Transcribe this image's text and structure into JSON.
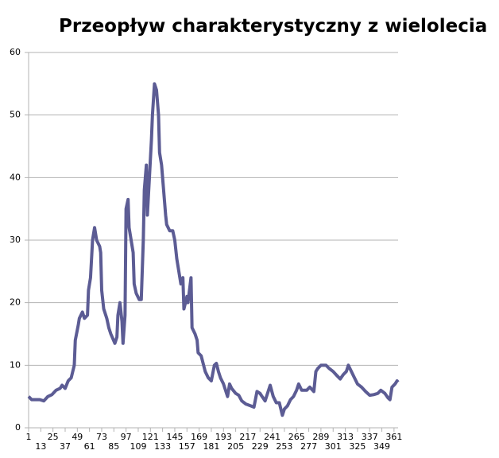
{
  "chart_data": {
    "type": "line",
    "title": "Przeopływ charakterystyczny z wielolecia",
    "x": [
      1,
      4,
      12,
      16,
      20,
      24,
      28,
      32,
      34,
      37,
      40,
      43,
      46,
      47,
      50,
      51,
      54,
      56,
      59,
      60,
      62,
      64,
      66,
      68,
      71,
      72,
      73,
      75,
      77,
      78,
      80,
      82,
      86,
      88,
      89,
      91,
      93,
      94,
      96,
      97,
      99,
      100,
      102,
      104,
      105,
      107,
      110,
      112,
      114,
      115,
      117,
      118,
      120,
      122,
      123,
      125,
      127,
      129,
      130,
      132,
      133,
      136,
      137,
      140,
      143,
      145,
      147,
      149,
      151,
      153,
      154,
      157,
      158,
      161,
      162,
      165,
      167,
      168,
      171,
      175,
      178,
      181,
      184,
      186,
      188,
      190,
      193,
      197,
      199,
      201,
      205,
      208,
      211,
      215,
      220,
      223,
      226,
      229,
      231,
      234,
      239,
      242,
      245,
      248,
      251,
      253,
      256,
      259,
      262,
      265,
      267,
      270,
      275,
      278,
      282,
      284,
      286,
      289,
      294,
      297,
      301,
      305,
      308,
      311,
      314,
      316,
      319,
      322,
      325,
      329,
      333,
      337,
      341,
      345,
      348,
      352,
      355,
      357,
      359,
      362,
      364,
      365
    ],
    "values": [
      5,
      4.5,
      4.5,
      4.3,
      5,
      5.3,
      6,
      6.3,
      6.8,
      6.3,
      7.5,
      8,
      10,
      14,
      16.5,
      17.5,
      18.5,
      17.5,
      18,
      22,
      24,
      30,
      32,
      30,
      29,
      28,
      22,
      19,
      18,
      17.5,
      16,
      15,
      13.5,
      14.5,
      18,
      20,
      17,
      13.5,
      18,
      35,
      36.5,
      32,
      30,
      28,
      23,
      21.5,
      20.5,
      20.5,
      30,
      38,
      42,
      34,
      40,
      46,
      50,
      55,
      54,
      50,
      44,
      42,
      40,
      34,
      32.5,
      31.5,
      31.5,
      30,
      27,
      25,
      23,
      24,
      19,
      21,
      20,
      24,
      16,
      15,
      14,
      12,
      11.5,
      9,
      8,
      7.5,
      10,
      10.3,
      9,
      8,
      7,
      5,
      7,
      6.3,
      5.5,
      5.2,
      4.3,
      3.8,
      3.5,
      3.3,
      5.8,
      5.5,
      5,
      4.3,
      6.8,
      5,
      4,
      4,
      2,
      3,
      3.5,
      4.5,
      5,
      6,
      7,
      6,
      6,
      6.5,
      5.8,
      9,
      9.5,
      10,
      10,
      9.5,
      9,
      8.3,
      7.8,
      8.5,
      9,
      10,
      9,
      8,
      7,
      6.5,
      5.8,
      5.2,
      5.3,
      5.5,
      6,
      5.5,
      4.8,
      4.5,
      6.5,
      7,
      7.5,
      7.3
    ],
    "color": "#5c5c94",
    "xlim": [
      1,
      365
    ],
    "xticks": [
      1,
      13,
      25,
      37,
      49,
      61,
      73,
      85,
      97,
      109,
      121,
      133,
      145,
      157,
      169,
      181,
      193,
      205,
      217,
      229,
      241,
      253,
      265,
      277,
      289,
      301,
      313,
      325,
      337,
      349,
      361
    ],
    "ylim": [
      0,
      60
    ],
    "yticks": [
      0,
      10,
      20,
      30,
      40,
      50,
      60
    ],
    "grid": true
  }
}
